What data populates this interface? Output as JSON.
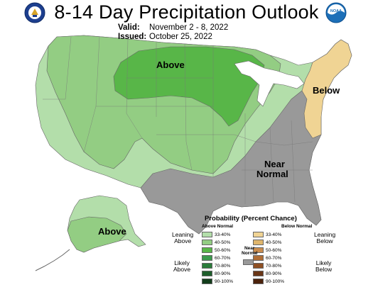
{
  "title": "8-14 Day Precipitation Outlook",
  "valid_label": "Valid:",
  "valid_value": "November 2 - 8, 2022",
  "issued_label": "Issued:",
  "issued_value": "October 25, 2022",
  "logos": {
    "left": "doc-seal-icon",
    "right": "noaa-logo-icon",
    "noaa_text": "NOAA"
  },
  "map": {
    "labels": {
      "above": "Above",
      "below": "Below",
      "near_line1": "Near",
      "near_line2": "Normal",
      "alaska_above": "Above"
    },
    "colors": {
      "land_background": "#ffffff",
      "above_33_40": "#b3deaa",
      "above_40_50": "#93cd83",
      "above_50_60": "#58b648",
      "near_normal": "#999999",
      "below_33_40": "#f0d494",
      "water": "#ffffff",
      "border": "#555555"
    }
  },
  "legend": {
    "title": "Probability (Percent Chance)",
    "above_header": "Above Normal",
    "below_header": "Below Normal",
    "near_label_line1": "Near",
    "near_label_line2": "Normal",
    "leaning_above_1": "Leaning",
    "leaning_above_2": "Above",
    "likely_above_1": "Likely",
    "likely_above_2": "Above",
    "leaning_below_1": "Leaning",
    "leaning_below_2": "Below",
    "likely_below_1": "Likely",
    "likely_below_2": "Below",
    "above": [
      {
        "label": "33-40%",
        "color": "#b3deaa"
      },
      {
        "label": "40-50%",
        "color": "#93cd83"
      },
      {
        "label": "50-60%",
        "color": "#58b648"
      },
      {
        "label": "60-70%",
        "color": "#3c9a4e"
      },
      {
        "label": "70-80%",
        "color": "#2a7c3a"
      },
      {
        "label": "80-90%",
        "color": "#1e5d2b"
      },
      {
        "label": "90-100%",
        "color": "#123d1b"
      }
    ],
    "below": [
      {
        "label": "33-40%",
        "color": "#f0d494"
      },
      {
        "label": "40-50%",
        "color": "#dfb66d"
      },
      {
        "label": "50-60%",
        "color": "#c98c4e"
      },
      {
        "label": "60-70%",
        "color": "#b06e36"
      },
      {
        "label": "70-80%",
        "color": "#8e4f23"
      },
      {
        "label": "80-90%",
        "color": "#6a3617"
      },
      {
        "label": "90-100%",
        "color": "#4b220c"
      }
    ],
    "near_color": "#999999"
  }
}
